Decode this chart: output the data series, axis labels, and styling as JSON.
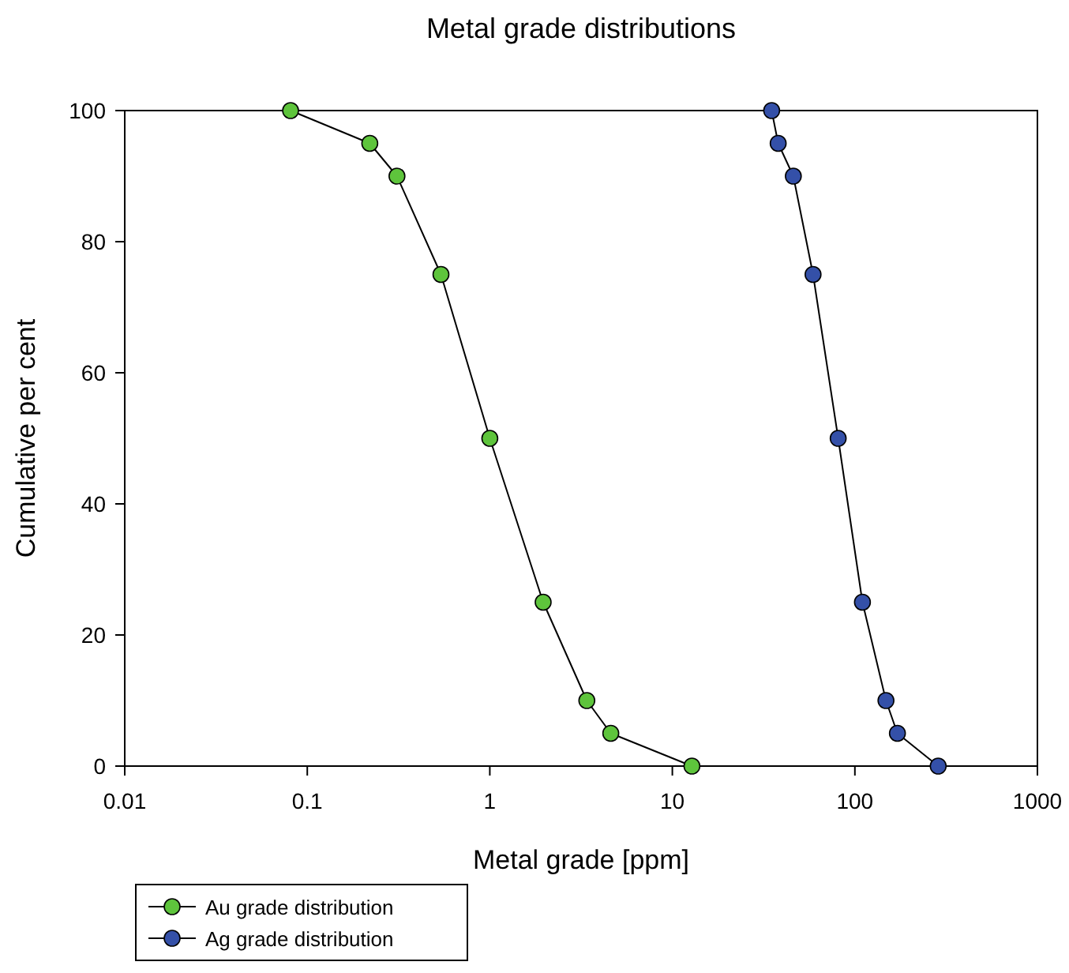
{
  "chart_data": {
    "type": "line",
    "title": "Metal grade distributions",
    "xlabel": "Metal grade [ppm]",
    "ylabel": "Cumulative per cent",
    "log": "x",
    "xlim": [
      0.01,
      1000
    ],
    "xticks": [
      0.01,
      0.1,
      1,
      10,
      100,
      1000
    ],
    "ylim": [
      0,
      100
    ],
    "yticks": [
      0,
      20,
      40,
      60,
      80,
      100
    ],
    "marker": "circle",
    "line_style": "solid",
    "legend": "bottom left",
    "series": [
      {
        "name": "Au grade distribution",
        "color": "#5ec43c",
        "x": [
          0.081,
          0.22,
          0.31,
          0.54,
          1.0,
          1.96,
          3.4,
          4.6,
          12.8
        ],
        "values": [
          100,
          95,
          90,
          75,
          50,
          25,
          10,
          5,
          0
        ]
      },
      {
        "name": "Ag grade distribution",
        "color": "#3450a8",
        "x": [
          35,
          38,
          46,
          59,
          81,
          110,
          148,
          171,
          286
        ],
        "values": [
          100,
          95,
          90,
          75,
          50,
          25,
          10,
          5,
          0
        ]
      }
    ]
  }
}
